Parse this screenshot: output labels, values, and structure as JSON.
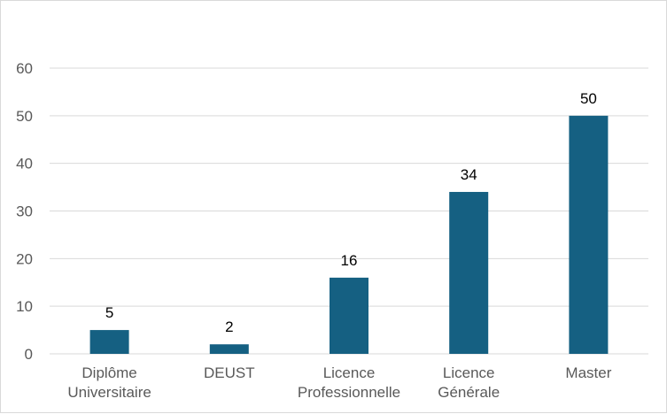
{
  "chart_data": {
    "type": "bar",
    "categories": [
      [
        "Diplôme",
        "Universitaire"
      ],
      [
        "DEUST"
      ],
      [
        "Licence",
        "Professionnelle"
      ],
      [
        "Licence",
        "Générale"
      ],
      [
        "Master"
      ]
    ],
    "values": [
      5,
      2,
      16,
      34,
      50
    ],
    "ylim": [
      0,
      60
    ],
    "yticks": [
      0,
      10,
      20,
      30,
      40,
      50,
      60
    ],
    "grid": true,
    "data_labels": true,
    "bar_color": "#156082",
    "gridline_color": "#d9d9d9",
    "title": "",
    "xlabel": "",
    "ylabel": ""
  }
}
